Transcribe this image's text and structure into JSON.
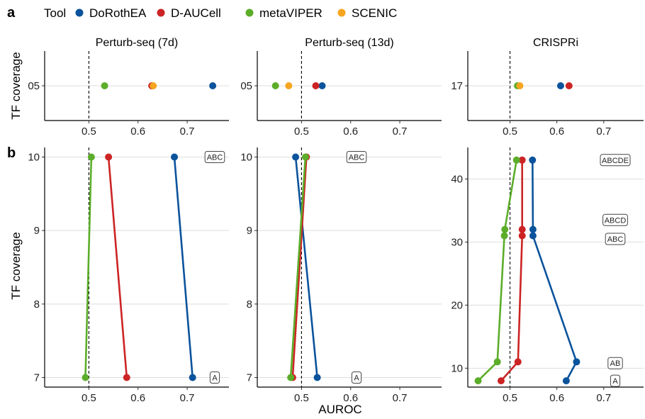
{
  "legend": {
    "title": "Tool",
    "items": [
      {
        "name": "DoRothEA",
        "color": "#0b539c"
      },
      {
        "name": "D-AUCell",
        "color": "#cc2424"
      },
      {
        "name": "metaVIPER",
        "color": "#5cad2a"
      },
      {
        "name": "SCENIC",
        "color": "#f5a51f"
      }
    ]
  },
  "panel_tags": [
    "a",
    "b"
  ],
  "xlabel": "AUROC",
  "ylabel": "TF coverage",
  "chart_data": [
    {
      "type": "scatter",
      "row": "a",
      "title": "Perturb-seq (7d)",
      "xlim": [
        0.41,
        0.785
      ],
      "xticks": [
        0.5,
        0.6,
        0.7
      ],
      "refline": 0.5,
      "ycategories": [
        "05"
      ],
      "series": [
        {
          "name": "DoRothEA",
          "points": [
            {
              "x": 0.752,
              "y": "05"
            }
          ]
        },
        {
          "name": "D-AUCell",
          "points": [
            {
              "x": 0.628,
              "y": "05"
            }
          ]
        },
        {
          "name": "metaVIPER",
          "points": [
            {
              "x": 0.532,
              "y": "05"
            }
          ]
        },
        {
          "name": "SCENIC",
          "points": [
            {
              "x": 0.631,
              "y": "05"
            }
          ]
        }
      ]
    },
    {
      "type": "scatter",
      "row": "a",
      "title": "Perturb-seq (13d)",
      "xlim": [
        0.41,
        0.785
      ],
      "xticks": [
        0.5,
        0.6,
        0.7
      ],
      "refline": 0.5,
      "ycategories": [
        "05"
      ],
      "series": [
        {
          "name": "DoRothEA",
          "points": [
            {
              "x": 0.542,
              "y": "05"
            }
          ]
        },
        {
          "name": "D-AUCell",
          "points": [
            {
              "x": 0.529,
              "y": "05"
            }
          ]
        },
        {
          "name": "metaVIPER",
          "points": [
            {
              "x": 0.447,
              "y": "05"
            }
          ]
        },
        {
          "name": "SCENIC",
          "points": [
            {
              "x": 0.474,
              "y": "05"
            }
          ]
        }
      ]
    },
    {
      "type": "scatter",
      "row": "a",
      "title": "CRISPRi",
      "xlim": [
        0.41,
        0.785
      ],
      "xticks": [
        0.5,
        0.6,
        0.7
      ],
      "refline": 0.5,
      "ycategories": [
        "17"
      ],
      "series": [
        {
          "name": "DoRothEA",
          "points": [
            {
              "x": 0.608,
              "y": "17"
            }
          ]
        },
        {
          "name": "D-AUCell",
          "points": [
            {
              "x": 0.626,
              "y": "17"
            }
          ]
        },
        {
          "name": "metaVIPER",
          "points": [
            {
              "x": 0.516,
              "y": "17"
            }
          ]
        },
        {
          "name": "SCENIC",
          "points": [
            {
              "x": 0.521,
              "y": "17"
            }
          ]
        }
      ]
    },
    {
      "type": "line",
      "row": "b",
      "column": "Perturb-seq (7d)",
      "xlim": [
        0.41,
        0.785
      ],
      "xticks": [
        0.5,
        0.6,
        0.7
      ],
      "refline": 0.5,
      "ylim": [
        6.87,
        10.13
      ],
      "yticks": [
        7,
        8,
        9,
        10
      ],
      "series": [
        {
          "name": "DoRothEA",
          "points": [
            [
              0.674,
              10
            ],
            [
              0.711,
              7
            ]
          ]
        },
        {
          "name": "D-AUCell",
          "points": [
            [
              0.54,
              10
            ],
            [
              0.577,
              7
            ]
          ]
        },
        {
          "name": "metaVIPER",
          "points": [
            [
              0.505,
              10
            ],
            [
              0.493,
              7
            ]
          ]
        }
      ],
      "annotations": [
        {
          "text": "ABC",
          "y": 10
        },
        {
          "text": "A",
          "y": 7
        }
      ]
    },
    {
      "type": "line",
      "row": "b",
      "column": "Perturb-seq (13d)",
      "xlim": [
        0.41,
        0.785
      ],
      "xticks": [
        0.5,
        0.6,
        0.7
      ],
      "refline": 0.5,
      "ylim": [
        6.87,
        10.13
      ],
      "yticks": [
        7,
        8,
        9,
        10
      ],
      "series": [
        {
          "name": "DoRothEA",
          "points": [
            [
              0.488,
              10
            ],
            [
              0.532,
              7
            ]
          ]
        },
        {
          "name": "D-AUCell",
          "points": [
            [
              0.51,
              10
            ],
            [
              0.482,
              7
            ]
          ]
        },
        {
          "name": "metaVIPER",
          "points": [
            [
              0.508,
              10
            ],
            [
              0.478,
              7
            ]
          ]
        }
      ],
      "annotations": [
        {
          "text": "ABC",
          "y": 10
        },
        {
          "text": "A",
          "y": 7
        }
      ]
    },
    {
      "type": "line",
      "row": "b",
      "column": "CRISPRi",
      "xlim": [
        0.41,
        0.785
      ],
      "xticks": [
        0.5,
        0.6,
        0.7
      ],
      "refline": 0.5,
      "ylim": [
        7.0,
        45.0
      ],
      "yticks": [
        10,
        20,
        30,
        40
      ],
      "series": [
        {
          "name": "DoRothEA",
          "points": [
            [
              0.548,
              43
            ],
            [
              0.549,
              32
            ],
            [
              0.549,
              31
            ],
            [
              0.642,
              11
            ],
            [
              0.62,
              8
            ]
          ]
        },
        {
          "name": "D-AUCell",
          "points": [
            [
              0.526,
              43
            ],
            [
              0.526,
              32
            ],
            [
              0.526,
              31
            ],
            [
              0.517,
              11
            ],
            [
              0.481,
              8
            ]
          ]
        },
        {
          "name": "metaVIPER",
          "points": [
            [
              0.514,
              43
            ],
            [
              0.489,
              32
            ],
            [
              0.488,
              31
            ],
            [
              0.473,
              11
            ],
            [
              0.432,
              8
            ]
          ]
        }
      ],
      "annotations": [
        {
          "text": "ABCDE",
          "y": 43
        },
        {
          "text": "ABCD",
          "y": 33.5
        },
        {
          "text": "ABC",
          "y": 30.5
        },
        {
          "text": "AB",
          "y": 10.8
        },
        {
          "text": "A",
          "y": 8
        }
      ]
    }
  ]
}
